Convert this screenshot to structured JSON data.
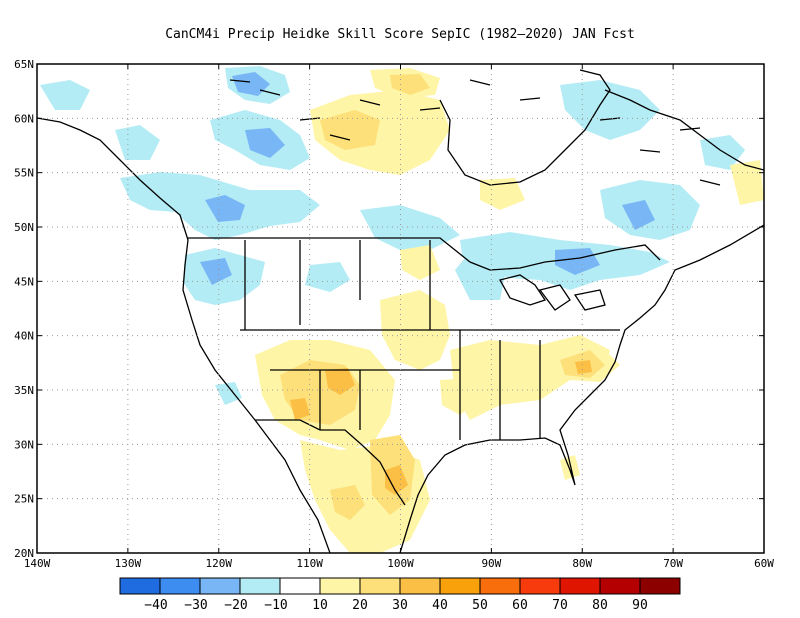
{
  "title": "CanCM4i Precip Heidke Skill Score SepIC (1982–2020) JAN Fcst",
  "map": {
    "lon_range": [
      -140,
      -60
    ],
    "lat_range": [
      20,
      65
    ],
    "lon_ticks": [
      {
        "value": -140,
        "label": "140W"
      },
      {
        "value": -130,
        "label": "130W"
      },
      {
        "value": -120,
        "label": "120W"
      },
      {
        "value": -110,
        "label": "110W"
      },
      {
        "value": -100,
        "label": "100W"
      },
      {
        "value": -90,
        "label": "90W"
      },
      {
        "value": -80,
        "label": "80W"
      },
      {
        "value": -70,
        "label": "70W"
      },
      {
        "value": -60,
        "label": "60W"
      }
    ],
    "lat_ticks": [
      {
        "value": 20,
        "label": "20N"
      },
      {
        "value": 25,
        "label": "25N"
      },
      {
        "value": 30,
        "label": "30N"
      },
      {
        "value": 35,
        "label": "35N"
      },
      {
        "value": 40,
        "label": "40N"
      },
      {
        "value": 45,
        "label": "45N"
      },
      {
        "value": 50,
        "label": "50N"
      },
      {
        "value": 55,
        "label": "55N"
      },
      {
        "value": 60,
        "label": "60N"
      },
      {
        "value": 65,
        "label": "65N"
      }
    ],
    "grid": "dotted"
  },
  "colorbar": {
    "colors": [
      "#1f6be0",
      "#3d8df0",
      "#78b6f5",
      "#b4ecf5",
      "#ffffff",
      "#fff5a6",
      "#fde07a",
      "#fbbf45",
      "#f9a10a",
      "#f86d0c",
      "#f73b0c",
      "#e01500",
      "#b40000",
      "#8c0000"
    ],
    "labels": [
      "−40",
      "−30",
      "−20",
      "−10",
      "10",
      "20",
      "30",
      "40",
      "50",
      "60",
      "70",
      "80",
      "90"
    ]
  }
}
